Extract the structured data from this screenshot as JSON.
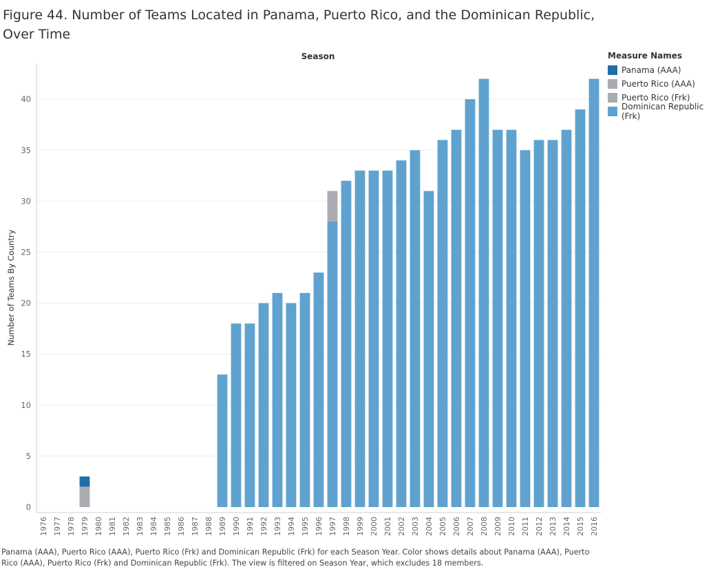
{
  "title": "Figure 44. Number of Teams Located in Panama, Puerto Rico, and the Dominican Republic, Over Time",
  "caption": "Panama (AAA), Puerto Rico (AAA), Puerto Rico (Frk) and Dominican Republic (Frk) for each Season Year.  Color shows details about Panama (AAA), Puerto Rico (AAA), Puerto Rico (Frk) and Dominican Republic (Frk). The view is filtered on Season Year, which excludes 18 members.",
  "legend": {
    "title": "Measure Names",
    "items": [
      {
        "label": "Panama (AAA)",
        "color": "#1f6fa8"
      },
      {
        "label": "Puerto Rico (AAA)",
        "color": "#a9acb1"
      },
      {
        "label": "Puerto Rico (Frk)",
        "color": "#a9acb1"
      },
      {
        "label": "Dominican Republic (Frk)",
        "color": "#5fa2cf"
      }
    ]
  },
  "chart_data": {
    "type": "bar",
    "stacked": true,
    "xlabel": "Season",
    "ylabel": "Number of Teams By Country",
    "ylim": [
      0,
      43
    ],
    "yticks": [
      0,
      5,
      10,
      15,
      20,
      25,
      30,
      35,
      40
    ],
    "grid": true,
    "legend_position": "top-right",
    "categories": [
      "1976",
      "1977",
      "1978",
      "1979",
      "1980",
      "1981",
      "1982",
      "1983",
      "1984",
      "1985",
      "1986",
      "1987",
      "1988",
      "1989",
      "1990",
      "1991",
      "1992",
      "1993",
      "1994",
      "1995",
      "1996",
      "1997",
      "1998",
      "1999",
      "2000",
      "2001",
      "2002",
      "2003",
      "2004",
      "2005",
      "2006",
      "2007",
      "2008",
      "2009",
      "2010",
      "2011",
      "2012",
      "2013",
      "2014",
      "2015",
      "2016"
    ],
    "series": [
      {
        "name": "Dominican Republic (Frk)",
        "color": "#5fa2cf",
        "values": [
          0,
          0,
          0,
          0,
          0,
          0,
          0,
          0,
          0,
          0,
          0,
          0,
          0,
          13,
          18,
          18,
          20,
          21,
          20,
          21,
          23,
          28,
          32,
          33,
          33,
          33,
          34,
          35,
          31,
          36,
          37,
          40,
          42,
          37,
          37,
          35,
          36,
          36,
          37,
          39,
          42
        ]
      },
      {
        "name": "Puerto Rico (Frk)",
        "color": "#a9acb1",
        "values": [
          0,
          0,
          0,
          2,
          0,
          0,
          0,
          0,
          0,
          0,
          0,
          0,
          0,
          0,
          0,
          0,
          0,
          0,
          0,
          0,
          0,
          0,
          0,
          0,
          0,
          0,
          0,
          0,
          0,
          0,
          0,
          0,
          0,
          0,
          0,
          0,
          0,
          0,
          0,
          0,
          0
        ]
      },
      {
        "name": "Puerto Rico (AAA)",
        "color": "#a9acb1",
        "values": [
          0,
          0,
          0,
          0,
          0,
          0,
          0,
          0,
          0,
          0,
          0,
          0,
          0,
          0,
          0,
          0,
          0,
          0,
          0,
          0,
          0,
          3,
          0,
          0,
          0,
          0,
          0,
          0,
          0,
          0,
          0,
          0,
          0,
          0,
          0,
          0,
          0,
          0,
          0,
          0,
          0
        ]
      },
      {
        "name": "Panama (AAA)",
        "color": "#1f6fa8",
        "values": [
          0,
          0,
          0,
          1,
          0,
          0,
          0,
          0,
          0,
          0,
          0,
          0,
          0,
          0,
          0,
          0,
          0,
          0,
          0,
          0,
          0,
          0,
          0,
          0,
          0,
          0,
          0,
          0,
          0,
          0,
          0,
          0,
          0,
          0,
          0,
          0,
          0,
          0,
          0,
          0,
          0
        ]
      }
    ]
  }
}
